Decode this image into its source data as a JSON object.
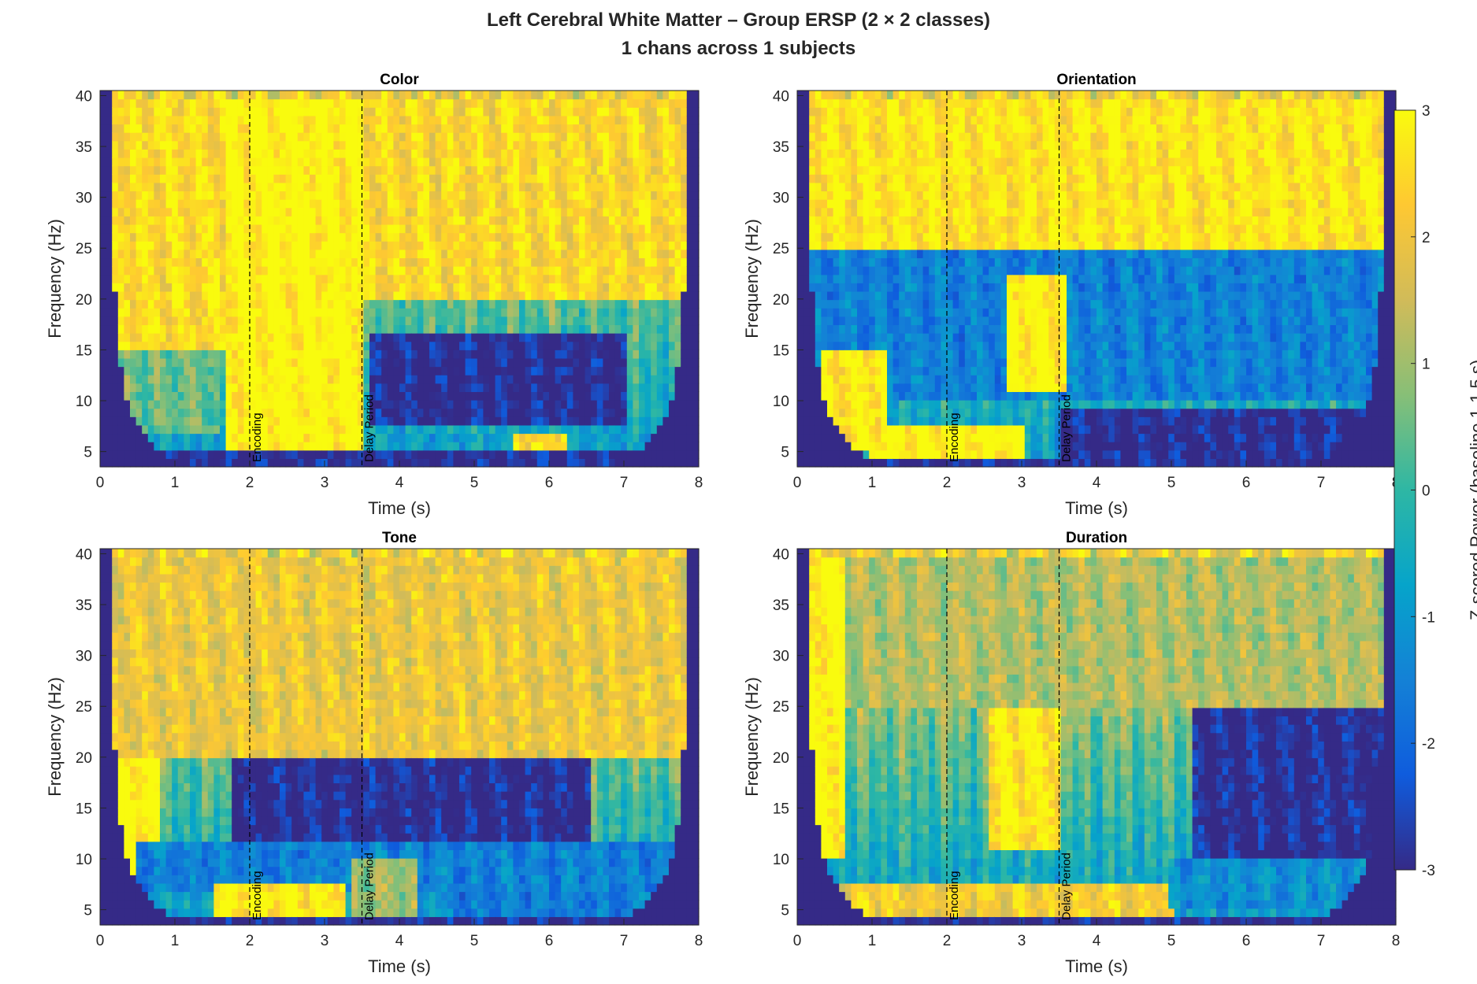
{
  "figure": {
    "title_line1": "Left Cerebral White Matter  –  Group ERSP (2 × 2 classes)",
    "title_line2": "1 chans across 1 subjects"
  },
  "colorbar": {
    "label": "Z-scored Power (baseline 1-1.5 s)",
    "range": [
      -3,
      3
    ],
    "ticks": [
      "3",
      "2",
      "1",
      "0",
      "-1",
      "-2",
      "-3"
    ],
    "colormap": "parula",
    "colors": [
      "#352a87",
      "#0f5cdd",
      "#1481d6",
      "#06a4ca",
      "#2eb7a4",
      "#87bf77",
      "#d1bb59",
      "#fec832",
      "#f9fb0e"
    ]
  },
  "chart_data": [
    {
      "type": "heatmap",
      "title": "Color",
      "xlabel": "Time (s)",
      "ylabel": "Frequency (Hz)",
      "xlim": [
        0,
        8
      ],
      "ylim": [
        3.5,
        40.5
      ],
      "xticks": [
        "0",
        "1",
        "2",
        "3",
        "4",
        "5",
        "6",
        "7",
        "8"
      ],
      "yticks": [
        "5",
        "10",
        "15",
        "20",
        "25",
        "30",
        "35",
        "40"
      ],
      "events": [
        {
          "time": 2,
          "label": "Encoding"
        },
        {
          "time": 3.5,
          "label": "Delay Period"
        }
      ],
      "regions": [
        {
          "t": [
            0.1,
            1.9
          ],
          "f": [
            15,
            40
          ],
          "z": 2.5
        },
        {
          "t": [
            1.7,
            3.5
          ],
          "f": [
            15,
            40
          ],
          "z": 3
        },
        {
          "t": [
            1.7,
            3.5
          ],
          "f": [
            5,
            15
          ],
          "z": 3
        },
        {
          "t": [
            3.5,
            7.8
          ],
          "f": [
            20,
            40
          ],
          "z": 2.4
        },
        {
          "t": [
            3.6,
            7.0
          ],
          "f": [
            8,
            17
          ],
          "z": -3
        },
        {
          "t": [
            3.6,
            7.8
          ],
          "f": [
            5,
            7
          ],
          "z": -0.8
        },
        {
          "t": [
            5.5,
            6.2
          ],
          "f": [
            5,
            6.5
          ],
          "z": 2.5
        },
        {
          "t": [
            0.3,
            1.6
          ],
          "f": [
            7,
            15
          ],
          "z": 0.5
        },
        {
          "t": [
            0.0,
            8.0
          ],
          "f": [
            3.5,
            4.8
          ],
          "z": -3
        }
      ]
    },
    {
      "type": "heatmap",
      "title": "Orientation",
      "xlabel": "Time (s)",
      "ylabel": "Frequency (Hz)",
      "xlim": [
        0,
        8
      ],
      "ylim": [
        3.5,
        40.5
      ],
      "xticks": [
        "0",
        "1",
        "2",
        "3",
        "4",
        "5",
        "6",
        "7",
        "8"
      ],
      "yticks": [
        "5",
        "10",
        "15",
        "20",
        "25",
        "30",
        "35",
        "40"
      ],
      "events": [
        {
          "time": 2,
          "label": "Encoding"
        },
        {
          "time": 3.5,
          "label": "Delay Period"
        }
      ],
      "regions": [
        {
          "t": [
            0.1,
            8.0
          ],
          "f": [
            25,
            40
          ],
          "z": 2.7
        },
        {
          "t": [
            0.2,
            8.0
          ],
          "f": [
            10,
            25
          ],
          "z": -1.5
        },
        {
          "t": [
            2.8,
            3.6
          ],
          "f": [
            11,
            22
          ],
          "z": 3
        },
        {
          "t": [
            1.0,
            3.0
          ],
          "f": [
            3.5,
            8
          ],
          "z": 3
        },
        {
          "t": [
            3.5,
            7.8
          ],
          "f": [
            4,
            9
          ],
          "z": -3
        },
        {
          "t": [
            0.3,
            1.2
          ],
          "f": [
            5,
            15
          ],
          "z": 2.8
        },
        {
          "t": [
            0.0,
            8.0
          ],
          "f": [
            3.5,
            4.5
          ],
          "z": -3
        }
      ]
    },
    {
      "type": "heatmap",
      "title": "Tone",
      "xlabel": "Time (s)",
      "ylabel": "Frequency (Hz)",
      "xlim": [
        0,
        8
      ],
      "ylim": [
        3.5,
        40.5
      ],
      "xticks": [
        "0",
        "1",
        "2",
        "3",
        "4",
        "5",
        "6",
        "7",
        "8"
      ],
      "yticks": [
        "5",
        "10",
        "15",
        "20",
        "25",
        "30",
        "35",
        "40"
      ],
      "events": [
        {
          "time": 2,
          "label": "Encoding"
        },
        {
          "time": 3.5,
          "label": "Delay Period"
        }
      ],
      "regions": [
        {
          "t": [
            0.1,
            8.0
          ],
          "f": [
            20,
            40
          ],
          "z": 2.0
        },
        {
          "t": [
            0.1,
            0.8
          ],
          "f": [
            8,
            20
          ],
          "z": 3
        },
        {
          "t": [
            1.8,
            6.6
          ],
          "f": [
            12,
            20
          ],
          "z": -3
        },
        {
          "t": [
            0.5,
            8.0
          ],
          "f": [
            7,
            12
          ],
          "z": -1.5
        },
        {
          "t": [
            1.5,
            3.3
          ],
          "f": [
            3.5,
            8
          ],
          "z": 2.8
        },
        {
          "t": [
            3.4,
            4.2
          ],
          "f": [
            3.5,
            10
          ],
          "z": 1.0
        },
        {
          "t": [
            4.6,
            7.2
          ],
          "f": [
            4,
            7
          ],
          "z": -1.6
        },
        {
          "t": [
            0.0,
            8.0
          ],
          "f": [
            3.5,
            4.5
          ],
          "z": -3
        }
      ]
    },
    {
      "type": "heatmap",
      "title": "Duration",
      "xlabel": "Time (s)",
      "ylabel": "Frequency (Hz)",
      "xlim": [
        0,
        8
      ],
      "ylim": [
        3.5,
        40.5
      ],
      "xticks": [
        "0",
        "1",
        "2",
        "3",
        "4",
        "5",
        "6",
        "7",
        "8"
      ],
      "yticks": [
        "5",
        "10",
        "15",
        "20",
        "25",
        "30",
        "35",
        "40"
      ],
      "events": [
        {
          "time": 2,
          "label": "Encoding"
        },
        {
          "time": 3.5,
          "label": "Delay Period"
        }
      ],
      "regions": [
        {
          "t": [
            0.1,
            8.0
          ],
          "f": [
            25,
            40
          ],
          "z": 1.2
        },
        {
          "t": [
            0.1,
            0.6
          ],
          "f": [
            10,
            40
          ],
          "z": 3
        },
        {
          "t": [
            2.6,
            3.5
          ],
          "f": [
            11,
            25
          ],
          "z": 2.8
        },
        {
          "t": [
            5.3,
            8.0
          ],
          "f": [
            10,
            25
          ],
          "z": -3
        },
        {
          "t": [
            0.4,
            5.0
          ],
          "f": [
            4,
            8
          ],
          "z": 2.2
        },
        {
          "t": [
            5.0,
            7.6
          ],
          "f": [
            5,
            10
          ],
          "z": -1.2
        },
        {
          "t": [
            0.0,
            8.0
          ],
          "f": [
            3.5,
            4.3
          ],
          "z": -3
        }
      ]
    }
  ]
}
